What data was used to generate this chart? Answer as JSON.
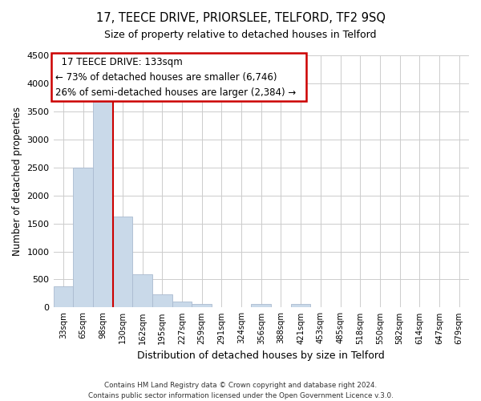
{
  "title": "17, TEECE DRIVE, PRIORSLEE, TELFORD, TF2 9SQ",
  "subtitle": "Size of property relative to detached houses in Telford",
  "xlabel": "Distribution of detached houses by size in Telford",
  "ylabel": "Number of detached properties",
  "categories": [
    "33sqm",
    "65sqm",
    "98sqm",
    "130sqm",
    "162sqm",
    "195sqm",
    "227sqm",
    "259sqm",
    "291sqm",
    "324sqm",
    "356sqm",
    "388sqm",
    "421sqm",
    "453sqm",
    "485sqm",
    "518sqm",
    "550sqm",
    "582sqm",
    "614sqm",
    "647sqm",
    "679sqm"
  ],
  "values": [
    380,
    2500,
    3700,
    1630,
    600,
    240,
    110,
    60,
    0,
    0,
    60,
    0,
    60,
    0,
    0,
    0,
    0,
    0,
    0,
    0,
    0
  ],
  "bar_color": "#c9d9e9",
  "bar_edge_color": "#aabbd0",
  "vline_x": 2.5,
  "vline_color": "#cc0000",
  "ylim": [
    0,
    4500
  ],
  "yticks": [
    0,
    500,
    1000,
    1500,
    2000,
    2500,
    3000,
    3500,
    4000,
    4500
  ],
  "annotation_title": "17 TEECE DRIVE: 133sqm",
  "annotation_line1": "← 73% of detached houses are smaller (6,746)",
  "annotation_line2": "26% of semi-detached houses are larger (2,384) →",
  "footer1": "Contains HM Land Registry data © Crown copyright and database right 2024.",
  "footer2": "Contains public sector information licensed under the Open Government Licence v.3.0.",
  "background_color": "#ffffff",
  "grid_color": "#cccccc",
  "title_fontsize": 10.5,
  "subtitle_fontsize": 9,
  "ylabel_fontsize": 8.5,
  "xlabel_fontsize": 9
}
